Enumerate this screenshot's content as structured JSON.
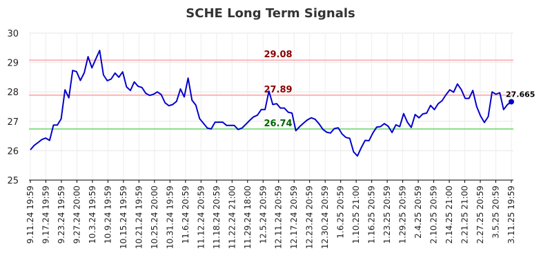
{
  "chart_data": {
    "type": "line",
    "title": "SCHE Long Term Signals",
    "xlabel": "",
    "ylabel": "",
    "ylim": [
      25,
      30
    ],
    "y_ticks": [
      "25",
      "26",
      "27",
      "28",
      "29",
      "30"
    ],
    "grid": true,
    "x_tick_labels": [
      "9.11.24 19:59",
      "9.17.24 19:59",
      "9.23.24 19:59",
      "9.27.24 20:00",
      "10.3.24 19:59",
      "10.9.24 19:59",
      "10.15.24 19:59",
      "10.21.24 19:59",
      "10.25.24 20:00",
      "10.31.24 19:59",
      "11.6.24 20:59",
      "11.12.24 20:59",
      "11.18.24 20:59",
      "11.22.24 21:00",
      "11.29.24 18:00",
      "12.5.24 20:59",
      "12.11.24 20:59",
      "12.17.24 20:59",
      "12.23.24 20:59",
      "12.30.24 20:59",
      "1.6.25 20:59",
      "1.10.25 21:00",
      "1.16.25 20:59",
      "1.23.25 20:59",
      "1.29.25 20:59",
      "2.4.25 20:59",
      "2.10.25 20:59",
      "2.14.25 21:00",
      "2.21.25 21:00",
      "2.27.25 20:59",
      "3.5.25 20:59",
      "3.11.25 19:59"
    ],
    "series": [
      {
        "color": "#0000cc",
        "values": [
          26.03,
          26.18,
          26.28,
          26.38,
          26.43,
          26.35,
          26.87,
          26.87,
          27.08,
          28.07,
          27.8,
          28.73,
          28.69,
          28.39,
          28.65,
          29.2,
          28.82,
          29.12,
          29.41,
          28.58,
          28.38,
          28.44,
          28.64,
          28.5,
          28.68,
          28.17,
          28.05,
          28.34,
          28.19,
          28.15,
          27.95,
          27.88,
          27.92,
          28.0,
          27.91,
          27.63,
          27.53,
          27.57,
          27.68,
          28.1,
          27.83,
          28.47,
          27.72,
          27.55,
          27.09,
          26.93,
          26.77,
          26.74,
          26.97,
          26.97,
          26.97,
          26.86,
          26.86,
          26.86,
          26.72,
          26.77,
          26.9,
          27.03,
          27.15,
          27.21,
          27.4,
          27.4,
          28.03,
          27.57,
          27.6,
          27.45,
          27.45,
          27.31,
          27.28,
          26.68,
          26.82,
          26.94,
          27.05,
          27.12,
          27.07,
          26.92,
          26.73,
          26.63,
          26.6,
          26.75,
          26.78,
          26.57,
          26.45,
          26.42,
          25.96,
          25.82,
          26.1,
          26.35,
          26.34,
          26.6,
          26.8,
          26.82,
          26.92,
          26.83,
          26.62,
          26.88,
          26.82,
          27.26,
          26.97,
          26.79,
          27.23,
          27.12,
          27.25,
          27.28,
          27.54,
          27.4,
          27.6,
          27.7,
          27.9,
          28.07,
          27.99,
          28.27,
          28.08,
          27.78,
          27.78,
          28.05,
          27.5,
          27.18,
          26.96,
          27.16,
          28.0,
          27.92,
          27.97,
          27.4,
          27.57,
          27.665
        ]
      }
    ],
    "reference_lines": [
      {
        "value": 29.08,
        "label": "29.08",
        "line_color": "#ffb3b3",
        "label_color": "#8b0000"
      },
      {
        "value": 27.89,
        "label": "27.89",
        "line_color": "#ffb3b3",
        "label_color": "#8b0000"
      },
      {
        "value": 26.74,
        "label": "26.74",
        "line_color": "#88dd88",
        "label_color": "#006400"
      }
    ],
    "last_value_label": "27.665"
  }
}
